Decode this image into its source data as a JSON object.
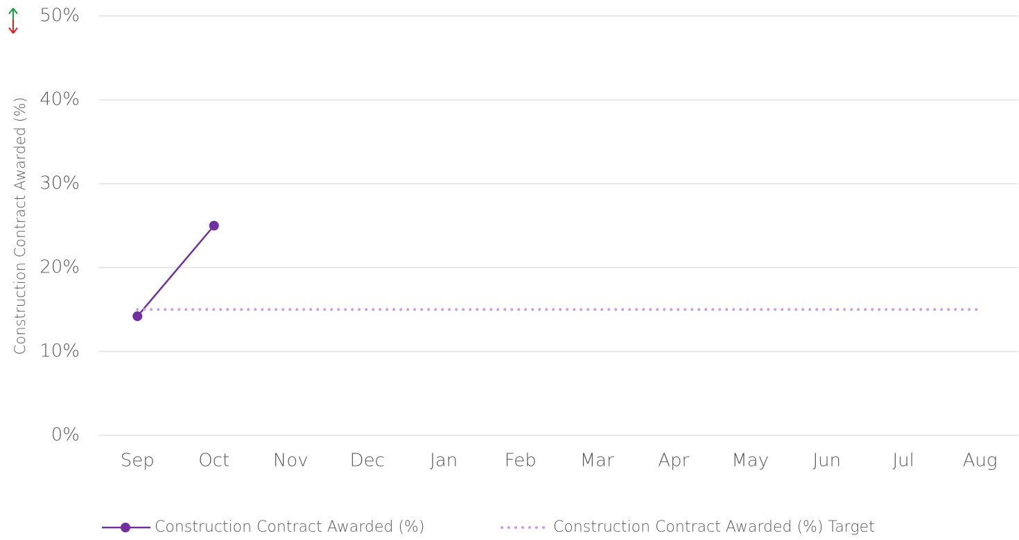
{
  "chart_data": {
    "type": "line",
    "y_label": "Construction Contract  Awarded (%)",
    "categories": [
      "Sep",
      "Oct",
      "Nov",
      "Dec",
      "Jan",
      "Feb",
      "Mar",
      "Apr",
      "May",
      "Jun",
      "Jul",
      "Aug"
    ],
    "series": [
      {
        "name": "Construction Contract Awarded (%)",
        "color": "#7030a0",
        "style": "solid",
        "marker": true,
        "values": [
          14.2,
          25,
          null,
          null,
          null,
          null,
          null,
          null,
          null,
          null,
          null,
          null
        ]
      },
      {
        "name": "Construction Contract Awarded (%) Target",
        "color": "#cc99f0",
        "style": "dotted",
        "marker": false,
        "values": [
          15,
          15,
          15,
          15,
          15,
          15,
          15,
          15,
          15,
          15,
          15,
          15
        ]
      }
    ],
    "ylim": [
      0,
      50
    ],
    "yticks": [
      {
        "value": 0,
        "label": "0%"
      },
      {
        "value": 10,
        "label": "10%"
      },
      {
        "value": 20,
        "label": "20%"
      },
      {
        "value": 30,
        "label": "30%"
      },
      {
        "value": 40,
        "label": "40%"
      },
      {
        "value": 50,
        "label": "50%"
      }
    ],
    "grid": true,
    "legend": "bottom"
  }
}
